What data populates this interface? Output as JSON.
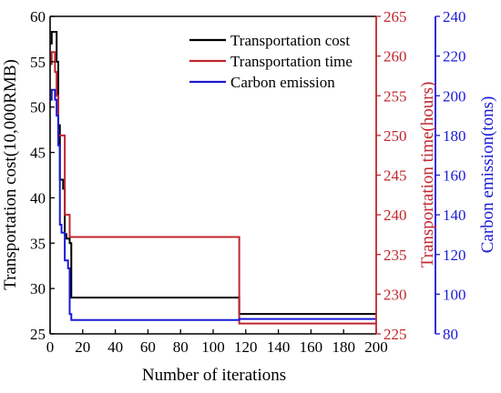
{
  "chart_data": {
    "type": "line",
    "xlabel": "Number of iterations",
    "xlim": [
      0,
      200
    ],
    "x_ticks": [
      0,
      20,
      40,
      60,
      80,
      100,
      120,
      140,
      160,
      180,
      200
    ],
    "axes": {
      "left": {
        "label": "Transportation cost(10,000RMB)",
        "ylim": [
          25,
          60
        ],
        "ticks": [
          25,
          30,
          35,
          40,
          45,
          50,
          55,
          60
        ],
        "color": "#000000"
      },
      "right1": {
        "label": "Transportation time(hours)",
        "ylim": [
          225,
          265
        ],
        "ticks": [
          225,
          230,
          235,
          240,
          245,
          250,
          255,
          260,
          265
        ],
        "color": "#c0262d"
      },
      "right2": {
        "label": "Carbon emission(tons)",
        "ylim": [
          80,
          240
        ],
        "ticks": [
          80,
          100,
          120,
          140,
          160,
          180,
          200,
          220,
          240
        ],
        "color": "#1a1ad6"
      }
    },
    "legend_position": "top-right",
    "series": [
      {
        "name": "Transportation cost",
        "axis": "left",
        "color": "#000000",
        "x": [
          0,
          1,
          2,
          3,
          4,
          5,
          6,
          7,
          8,
          9,
          10,
          11,
          12,
          13,
          114,
          115,
          116,
          200
        ],
        "y": [
          57,
          58.3,
          58.3,
          58.3,
          55,
          48,
          42,
          42,
          41,
          36,
          35.5,
          35.5,
          35,
          29,
          29,
          29,
          27.2,
          27.2
        ]
      },
      {
        "name": "Transportation time",
        "axis": "right1",
        "color": "#c0262d",
        "x": [
          0,
          1,
          2,
          3,
          4,
          5,
          6,
          7,
          8,
          9,
          10,
          11,
          12,
          13,
          114,
          115,
          116,
          200
        ],
        "y": [
          259,
          260.5,
          260.5,
          258,
          255,
          250,
          250,
          250,
          250,
          240,
          240,
          240,
          237.2,
          237.2,
          237.2,
          237.2,
          226.3,
          226.3
        ]
      },
      {
        "name": "Carbon emission",
        "axis": "right2",
        "color": "#1a1ad6",
        "x": [
          0,
          1,
          2,
          3,
          4,
          5,
          6,
          7,
          8,
          9,
          10,
          11,
          12,
          13,
          114,
          115,
          116,
          200
        ],
        "y": [
          198,
          203,
          203,
          198,
          190,
          175,
          135,
          131,
          131,
          117,
          117,
          113,
          90,
          87,
          87,
          87,
          87.5,
          87.5
        ]
      }
    ]
  }
}
